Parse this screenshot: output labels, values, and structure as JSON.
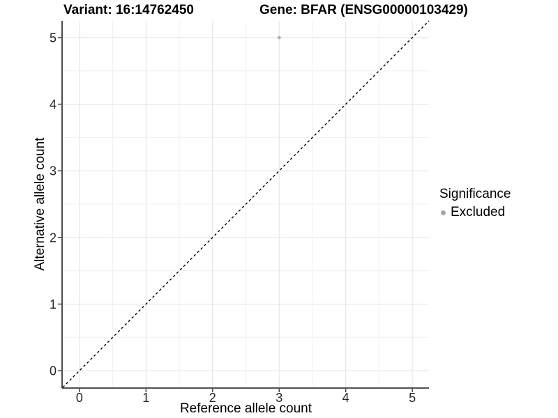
{
  "chart_data": {
    "type": "scatter",
    "title_left": "Variant: 16:14762450",
    "title_right": "Gene: BFAR (ENSG00000103429)",
    "xlabel": "Reference allele count",
    "ylabel": "Alternative allele count",
    "xlim": [
      -0.25,
      5.25
    ],
    "ylim": [
      -0.25,
      5.25
    ],
    "x_ticks": [
      0,
      1,
      2,
      3,
      4,
      5
    ],
    "y_ticks": [
      0,
      1,
      2,
      3,
      4,
      5
    ],
    "grid": "major+minor",
    "series": [
      {
        "name": "Excluded",
        "color": "#b0b0b0",
        "points": [
          [
            3,
            5
          ]
        ]
      }
    ],
    "reference_line": {
      "type": "identity",
      "from": [
        -0.25,
        -0.25
      ],
      "to": [
        5.25,
        5.25
      ],
      "style": "dashed",
      "color": "#000000"
    },
    "legend": {
      "title": "Significance",
      "position": "right",
      "entries": [
        {
          "label": "Excluded",
          "color": "#a6a6a6"
        }
      ]
    },
    "colors": {
      "background": "#ffffff",
      "grid_major": "#e3e3e3",
      "grid_minor": "#f0f0f0",
      "axis_line": "#383838",
      "tick_label": "#262626"
    }
  }
}
